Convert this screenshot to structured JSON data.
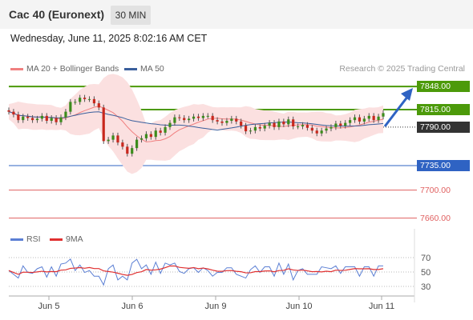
{
  "header": {
    "title": "Cac 40 (Euronext)",
    "timeframe": "30 MIN"
  },
  "datetime": "Wednesday, June 11, 2025 8:02:16 AM CET",
  "legend": [
    {
      "label": "MA 20 + Bollinger Bands",
      "color": "#f08080"
    },
    {
      "label": "MA 50",
      "color": "#3a5f9c"
    }
  ],
  "credit": "Research © 2025 Trading Central",
  "chart_data": {
    "type": "candlestick",
    "levels": [
      {
        "value": 7848,
        "label": "7848.00",
        "color": "#4c9a0a",
        "style": "resistance"
      },
      {
        "value": 7815,
        "label": "7815.00",
        "color": "#4c9a0a",
        "style": "resistance"
      },
      {
        "value": 7790,
        "label": "7790.00",
        "color": "#333333",
        "style": "current"
      },
      {
        "value": 7735,
        "label": "7735.00",
        "color": "#2f63c3",
        "style": "support"
      },
      {
        "value": 7700,
        "label": "7700.00",
        "color": "#e06060",
        "style": "support"
      },
      {
        "value": 7660,
        "label": "7660.00",
        "color": "#e06060",
        "style": "support"
      }
    ],
    "x_labels": [
      "Jun 5",
      "Jun 6",
      "Jun 9",
      "Jun 10",
      "Jun 11"
    ],
    "price_series": [
      7812,
      7808,
      7800,
      7805,
      7803,
      7800,
      7802,
      7806,
      7799,
      7803,
      7797,
      7804,
      7812,
      7826,
      7826,
      7832,
      7830,
      7830,
      7824,
      7818,
      7770,
      7772,
      7778,
      7768,
      7762,
      7752,
      7760,
      7772,
      7774,
      7780,
      7776,
      7785,
      7782,
      7790,
      7796,
      7804,
      7803,
      7800,
      7802,
      7805,
      7803,
      7806,
      7806,
      7800,
      7798,
      7796,
      7799,
      7802,
      7798,
      7792,
      7784,
      7785,
      7790,
      7788,
      7792,
      7796,
      7790,
      7798,
      7794,
      7801,
      7791,
      7791,
      7793,
      7789,
      7785,
      7781,
      7785,
      7788,
      7790,
      7795,
      7792,
      7796,
      7800,
      7804,
      7798,
      7802,
      7806,
      7800,
      7805,
      7810
    ],
    "rsi": {
      "ticks": [
        70,
        50,
        30
      ],
      "series": [
        {
          "name": "RSI",
          "color": "#5b7fd4"
        },
        {
          "name": "9MA",
          "color": "#e03030"
        }
      ]
    }
  }
}
